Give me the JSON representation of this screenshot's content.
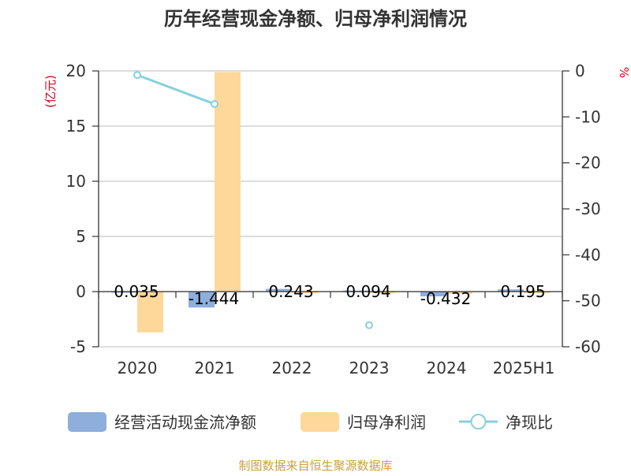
{
  "chart_data": {
    "type": "bar",
    "title": "历年经营现金净额、归母净利润情况",
    "categories": [
      "2020",
      "2021",
      "2022",
      "2023",
      "2024",
      "2025H1"
    ],
    "series": [
      {
        "name": "经营活动现金流净额",
        "type": "bar",
        "axis": "left",
        "color": "#8eaedc",
        "values": [
          0.035,
          -1.444,
          0.243,
          0.094,
          -0.432,
          0.195
        ],
        "labels": [
          "0.035",
          "-1.444",
          "0.243",
          "0.094",
          "-0.432",
          "0.195"
        ]
      },
      {
        "name": "归母净利润",
        "type": "bar",
        "axis": "left",
        "color": "#fdd89a",
        "values": [
          -3.7,
          19.9,
          -0.05,
          -0.08,
          -0.2,
          -0.05
        ]
      },
      {
        "name": "净现比",
        "type": "line",
        "axis": "right",
        "color": "#87d0dc",
        "values": [
          -0.9,
          -7.2,
          null,
          -55.3,
          null,
          null
        ]
      }
    ],
    "left_axis": {
      "unit": "(亿元)",
      "ylim": [
        -5,
        20
      ],
      "ticks": [
        "-5",
        "0",
        "5",
        "10",
        "15",
        "20"
      ]
    },
    "right_axis": {
      "unit": "%",
      "ylim": [
        -60,
        0
      ],
      "ticks": [
        "-60",
        "-50",
        "-40",
        "-30",
        "-20",
        "-10",
        "0"
      ]
    },
    "grid": true,
    "legend_position": "bottom"
  },
  "source": "制图数据来自恒生聚源数据库"
}
